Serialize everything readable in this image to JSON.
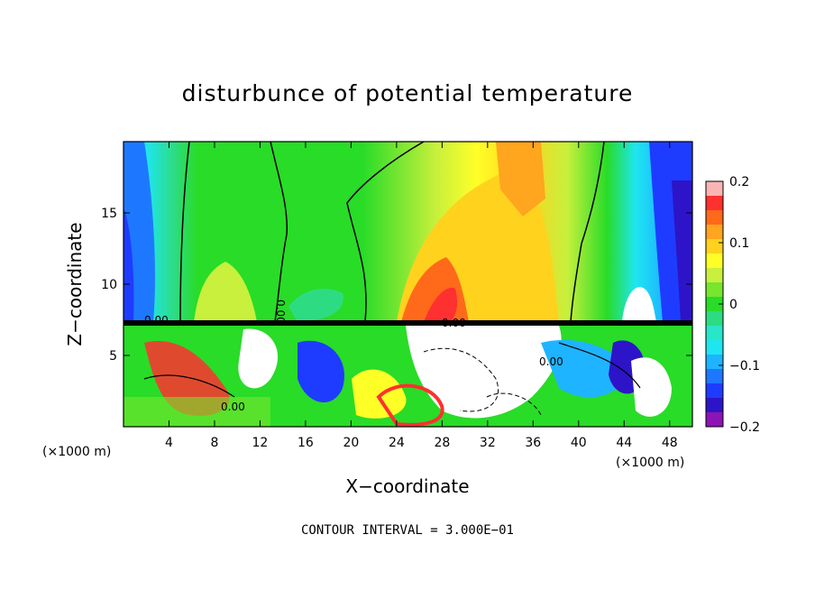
{
  "chart_data": {
    "type": "heatmap",
    "title": "disturbunce of potential temperature",
    "xlabel": "X−coordinate",
    "ylabel": "Z−coordinate",
    "x_unit_left": "(×1000 m)",
    "x_unit_right": "(×1000 m)",
    "footer": "CONTOUR INTERVAL = 3.000E−01",
    "xlim": [
      0,
      50
    ],
    "ylim": [
      0,
      20
    ],
    "x_ticks": [
      4,
      8,
      12,
      16,
      20,
      24,
      28,
      32,
      36,
      40,
      44,
      48
    ],
    "y_ticks": [
      5,
      10,
      15
    ],
    "colorbar": {
      "min": -0.2,
      "max": 0.2,
      "tick_values": [
        0.2,
        0.1,
        0,
        -0.1,
        -0.2
      ],
      "tick_labels": [
        "0.2",
        "0.1",
        "0",
        "−0.1",
        "−0.2"
      ],
      "colors": [
        "#fbb4b4",
        "#ff3030",
        "#ff6a1a",
        "#ffa51e",
        "#ffd21e",
        "#ffff28",
        "#c8f03c",
        "#78e62d",
        "#28dc28",
        "#2ddc82",
        "#28e6c8",
        "#1ee6f0",
        "#1eb4ff",
        "#1e78ff",
        "#1e3cff",
        "#2d14c8",
        "#8c14b4"
      ]
    },
    "contour_labels": [
      "0.00",
      "0.00",
      "0.00",
      "0.00",
      "0.00"
    ]
  }
}
